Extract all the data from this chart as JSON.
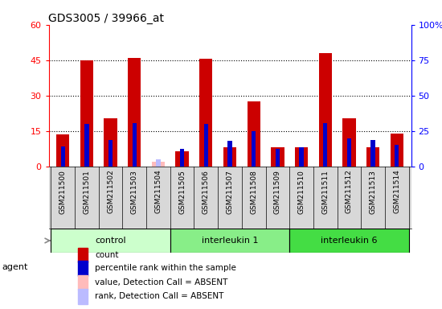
{
  "title": "GDS3005 / 39966_at",
  "samples": [
    "GSM211500",
    "GSM211501",
    "GSM211502",
    "GSM211503",
    "GSM211504",
    "GSM211505",
    "GSM211506",
    "GSM211507",
    "GSM211508",
    "GSM211509",
    "GSM211510",
    "GSM211511",
    "GSM211512",
    "GSM211513",
    "GSM211514"
  ],
  "count_values": [
    13.5,
    45.0,
    20.5,
    46.0,
    null,
    6.5,
    45.5,
    8.0,
    27.5,
    8.0,
    8.0,
    48.0,
    20.5,
    8.0,
    14.0
  ],
  "rank_values": [
    14.0,
    30.0,
    18.5,
    30.5,
    null,
    12.5,
    30.0,
    18.0,
    25.0,
    12.5,
    13.5,
    30.5,
    20.0,
    18.5,
    15.0
  ],
  "absent_count": [
    null,
    null,
    null,
    null,
    2.0,
    null,
    null,
    null,
    null,
    null,
    null,
    null,
    null,
    null,
    null
  ],
  "absent_rank": [
    null,
    null,
    null,
    null,
    5.0,
    null,
    null,
    null,
    null,
    null,
    null,
    null,
    null,
    null,
    null
  ],
  "groups": [
    {
      "label": "control",
      "start": 0,
      "end": 5,
      "color": "#ccffcc"
    },
    {
      "label": "interleukin 1",
      "start": 5,
      "end": 10,
      "color": "#88ee88"
    },
    {
      "label": "interleukin 6",
      "start": 10,
      "end": 15,
      "color": "#44dd44"
    }
  ],
  "ylim_left": [
    0,
    60
  ],
  "ylim_right": [
    0,
    100
  ],
  "yticks_left": [
    0,
    15,
    30,
    45,
    60
  ],
  "yticks_right": [
    0,
    25,
    50,
    75,
    100
  ],
  "ytick_labels_left": [
    "0",
    "15",
    "30",
    "45",
    "60"
  ],
  "ytick_labels_right": [
    "0",
    "25",
    "50",
    "75",
    "100%"
  ],
  "count_color": "#cc0000",
  "rank_color": "#0000cc",
  "absent_count_color": "#ffbbbb",
  "absent_rank_color": "#bbbbff",
  "plot_bg_color": "#ffffff",
  "tick_bg_color": "#d8d8d8",
  "agent_label": "agent",
  "legend_items": [
    {
      "label": "count",
      "color": "#cc0000"
    },
    {
      "label": "percentile rank within the sample",
      "color": "#0000cc"
    },
    {
      "label": "value, Detection Call = ABSENT",
      "color": "#ffbbbb"
    },
    {
      "label": "rank, Detection Call = ABSENT",
      "color": "#bbbbff"
    }
  ]
}
